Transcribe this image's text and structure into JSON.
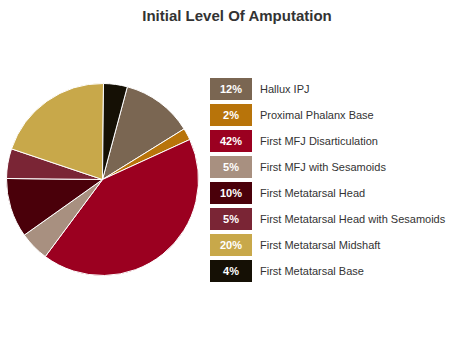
{
  "chart_data": {
    "type": "pie",
    "title": "Initial Level Of Amputation",
    "categories": [
      "Hallux IPJ",
      "Proximal Phalanx Base",
      "First MFJ Disarticulation",
      "First MFJ with Sesamoids",
      "First Metatarsal Head",
      "First Metatarsal Head with Sesamoids",
      "First Metatarsal Midshaft",
      "First Metatarsal Base"
    ],
    "values": [
      12,
      2,
      42,
      5,
      10,
      5,
      20,
      4
    ],
    "value_labels": [
      "12%",
      "2%",
      "42%",
      "5%",
      "10%",
      "5%",
      "20%",
      "4%"
    ],
    "colors": [
      "#7A6652",
      "#B8740A",
      "#9B0020",
      "#A89080",
      "#4A000A",
      "#7A2535",
      "#C8A84A",
      "#151005"
    ],
    "legend": "right"
  }
}
